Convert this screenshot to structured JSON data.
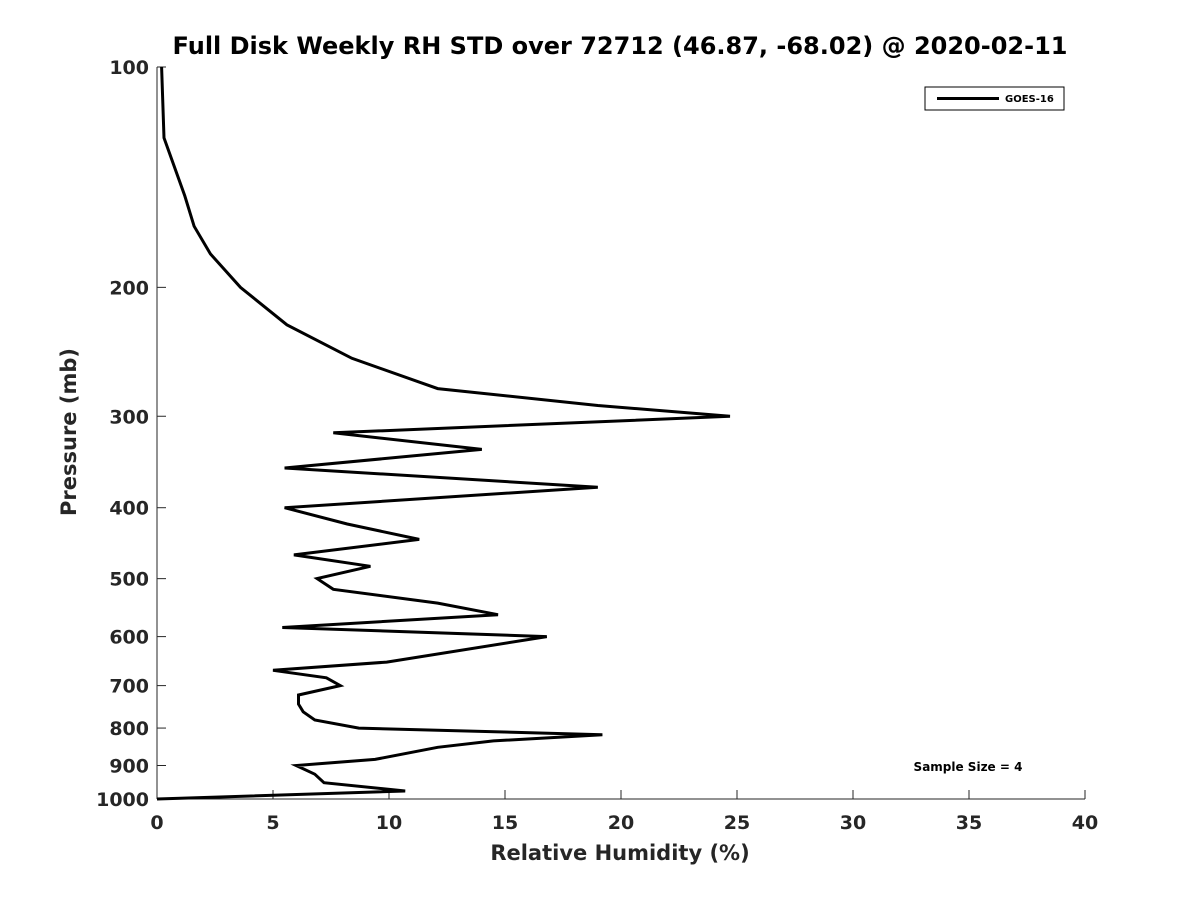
{
  "chart_data": {
    "type": "line",
    "title": "Full Disk Weekly RH STD over 72712 (46.87, -68.02) @ 2020-02-11",
    "xlabel": "Relative Humidity (%)",
    "ylabel": "Pressure (mb)",
    "xlim": [
      0,
      40
    ],
    "ylim": [
      100,
      1000
    ],
    "y_scale": "log",
    "y_reversed": true,
    "x_ticks": [
      "0",
      "5",
      "10",
      "15",
      "20",
      "25",
      "30",
      "35",
      "40"
    ],
    "y_ticks": [
      "100",
      "200",
      "300",
      "400",
      "500",
      "600",
      "700",
      "800",
      "900",
      "1000"
    ],
    "grid": false,
    "legend_position": "top-right",
    "annotation": "Sample Size = 4",
    "series": [
      {
        "name": "GOES-16",
        "color": "#000000",
        "points": [
          [
            0.2,
            100
          ],
          [
            0.3,
            125
          ],
          [
            1.2,
            150
          ],
          [
            1.6,
            165
          ],
          [
            2.3,
            180
          ],
          [
            3.6,
            200
          ],
          [
            5.6,
            225
          ],
          [
            8.4,
            250
          ],
          [
            12.1,
            275
          ],
          [
            19.0,
            290
          ],
          [
            24.7,
            300
          ],
          [
            7.6,
            316
          ],
          [
            14.0,
            333
          ],
          [
            5.5,
            353
          ],
          [
            19.0,
            375
          ],
          [
            5.5,
            400
          ],
          [
            8.2,
            421
          ],
          [
            11.3,
            442
          ],
          [
            5.9,
            464
          ],
          [
            9.2,
            481
          ],
          [
            6.9,
            500
          ],
          [
            7.6,
            517
          ],
          [
            12.1,
            540
          ],
          [
            14.7,
            560
          ],
          [
            5.4,
            583
          ],
          [
            16.8,
            600
          ],
          [
            9.9,
            650
          ],
          [
            5.0,
            667
          ],
          [
            7.3,
            683
          ],
          [
            7.9,
            700
          ],
          [
            6.1,
            721
          ],
          [
            6.1,
            742
          ],
          [
            6.3,
            760
          ],
          [
            6.8,
            780
          ],
          [
            8.7,
            800
          ],
          [
            19.2,
            817
          ],
          [
            14.5,
            833
          ],
          [
            12.1,
            850
          ],
          [
            9.4,
            883
          ],
          [
            6.0,
            900
          ],
          [
            6.8,
            925
          ],
          [
            7.2,
            950
          ],
          [
            10.7,
            975
          ],
          [
            0.0,
            1000
          ]
        ]
      }
    ]
  }
}
